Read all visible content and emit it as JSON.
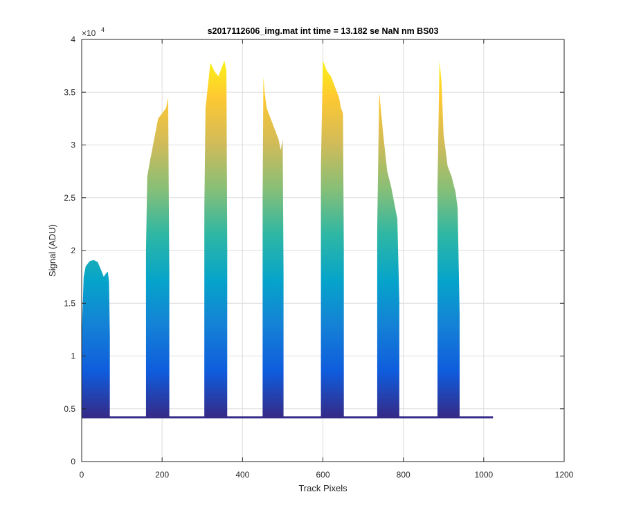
{
  "chart_data": {
    "type": "area",
    "title": "s2017112606_img.mat int time = 13.182 se  NaN nm BS03",
    "xlabel": "Track Pixels",
    "ylabel": "Signal (ADU)",
    "xlim": [
      0,
      1200
    ],
    "ylim": [
      0,
      40000
    ],
    "xticks": [
      "0",
      "200",
      "400",
      "600",
      "800",
      "1000",
      "1200"
    ],
    "yticks": [
      "0",
      "0.5",
      "1",
      "1.5",
      "2",
      "2.5",
      "3",
      "3.5",
      "4"
    ],
    "y_exponent_base": "×10",
    "y_exponent_power": "4",
    "grid": true,
    "colormap": "parula",
    "colormap_stops": [
      "#352a87",
      "#0f5cdd",
      "#1481d6",
      "#06a4ca",
      "#2eb7a4",
      "#87bf77",
      "#d1bb59",
      "#fec832",
      "#f9fb0e"
    ],
    "baseline": 4200,
    "x_extent": [
      0,
      1023
    ],
    "series": [
      {
        "x": [
          0,
          5,
          10,
          20,
          30,
          40,
          50,
          55,
          60,
          65,
          68,
          70
        ],
        "y": [
          12000,
          17500,
          18500,
          19000,
          19100,
          18900,
          18000,
          17500,
          17800,
          18000,
          17000,
          12000
        ]
      },
      {
        "x": [
          160,
          163,
          170,
          180,
          190,
          200,
          210,
          215,
          218
        ],
        "y": [
          20000,
          27000,
          28500,
          30500,
          32500,
          33000,
          33500,
          34500,
          18000
        ]
      },
      {
        "x": [
          305,
          308,
          315,
          320,
          330,
          340,
          350,
          355,
          360,
          362
        ],
        "y": [
          24000,
          33500,
          36000,
          37800,
          37000,
          36500,
          37500,
          38000,
          37000,
          20000
        ]
      },
      {
        "x": [
          450,
          452,
          455,
          460,
          470,
          480,
          490,
          495,
          500,
          502
        ],
        "y": [
          25000,
          36500,
          35000,
          33500,
          32500,
          31500,
          30500,
          29500,
          30500,
          18000
        ]
      },
      {
        "x": [
          595,
          600,
          605,
          610,
          620,
          630,
          640,
          645,
          650,
          652
        ],
        "y": [
          28000,
          38000,
          37500,
          37000,
          36500,
          35500,
          34500,
          33500,
          33000,
          20000
        ]
      },
      {
        "x": [
          735,
          740,
          745,
          750,
          760,
          770,
          780,
          785,
          790
        ],
        "y": [
          22000,
          35000,
          33000,
          31000,
          27500,
          26000,
          24000,
          23000,
          15000
        ]
      },
      {
        "x": [
          885,
          890,
          895,
          900,
          910,
          920,
          930,
          935,
          940
        ],
        "y": [
          26000,
          38000,
          36000,
          31000,
          28000,
          27000,
          25500,
          24000,
          14000
        ]
      }
    ]
  }
}
